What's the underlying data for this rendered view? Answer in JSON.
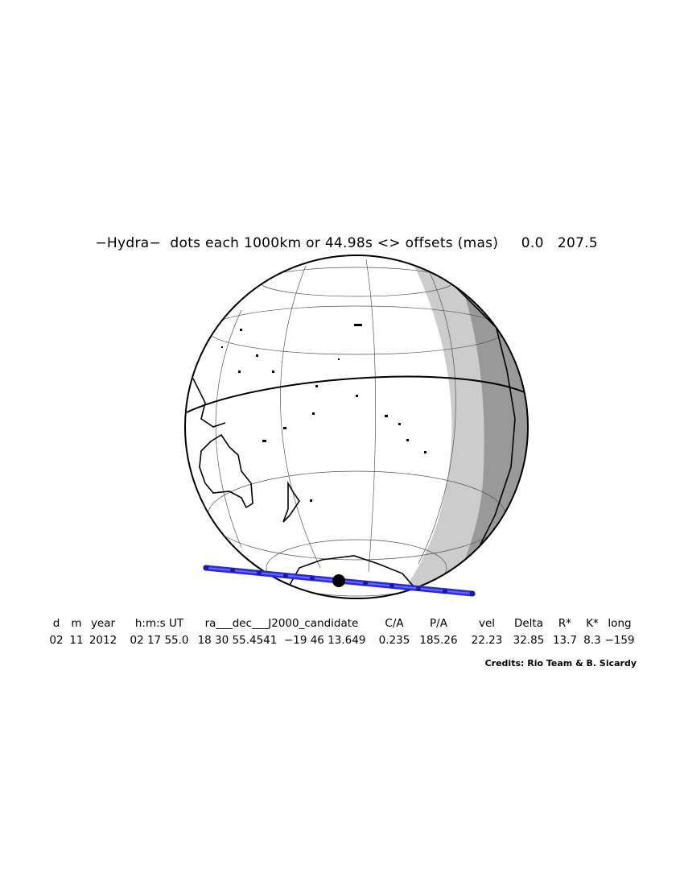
{
  "title": {
    "text": "−Hydra−  dots each 1000km or 44.98s <> offsets (mas)",
    "offset_ra": "0.0",
    "offset_dec": "207.5"
  },
  "table": {
    "headers": [
      "d",
      "m",
      "year",
      "h:m:s UT",
      "ra___dec___J2000_candidate",
      "C/A",
      "P/A",
      "vel",
      "Delta",
      "R*",
      "K*",
      "long"
    ],
    "values": [
      "02",
      "11",
      "2012",
      "02 17 55.0",
      "18 30 55.4541  −19 46 13.649",
      "0.235",
      "185.26",
      "22.23",
      "32.85",
      "13.7",
      "8.3",
      "−159"
    ]
  },
  "credits": "Credits: Rio Team & B. Sicardy",
  "colors": {
    "track": "#2a2adb",
    "night_light": "#cccccc",
    "night_dark": "#999999",
    "outline": "#000000"
  }
}
